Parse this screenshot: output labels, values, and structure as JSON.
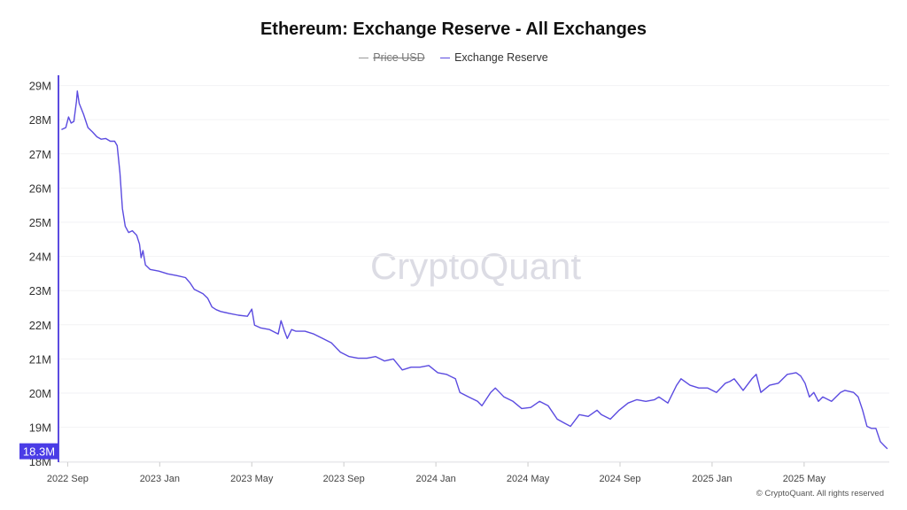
{
  "chart_data": {
    "type": "line",
    "title": "Ethereum: Exchange Reserve - All Exchanges",
    "legend": [
      {
        "name": "Price USD",
        "color": "#999999",
        "hidden": true
      },
      {
        "name": "Exchange Reserve",
        "color": "#5b4be0",
        "hidden": false
      }
    ],
    "legend_placement": "top-center",
    "x_unit": "months since 2022-09-01",
    "x_ticks": [
      {
        "label": "2022 Sep",
        "x": 0
      },
      {
        "label": "2023 Jan",
        "x": 4
      },
      {
        "label": "2023 May",
        "x": 8
      },
      {
        "label": "2023 Sep",
        "x": 12
      },
      {
        "label": "2024 Jan",
        "x": 16
      },
      {
        "label": "2024 May",
        "x": 20
      },
      {
        "label": "2024 Sep",
        "x": 24
      },
      {
        "label": "2025 Jan",
        "x": 28
      },
      {
        "label": "2025 May",
        "x": 32
      }
    ],
    "xlim": [
      -0.4,
      35.7
    ],
    "y_ticks": [
      {
        "label": "18M",
        "y": 18
      },
      {
        "label": "19M",
        "y": 19
      },
      {
        "label": "20M",
        "y": 20
      },
      {
        "label": "21M",
        "y": 21
      },
      {
        "label": "22M",
        "y": 22
      },
      {
        "label": "23M",
        "y": 23
      },
      {
        "label": "24M",
        "y": 24
      },
      {
        "label": "25M",
        "y": 25
      },
      {
        "label": "26M",
        "y": 26
      },
      {
        "label": "27M",
        "y": 27
      },
      {
        "label": "28M",
        "y": 28
      },
      {
        "label": "29M",
        "y": 29
      }
    ],
    "ylim": [
      17.98,
      29.3
    ],
    "ylabel_unit": "ETH (millions)",
    "grid": true,
    "current_value_label": "18.3M",
    "current_value": 18.3,
    "series": [
      {
        "name": "Exchange Reserve",
        "points": [
          [
            -0.27,
            27.71
          ],
          [
            -0.08,
            27.77
          ],
          [
            0.04,
            28.08
          ],
          [
            0.15,
            27.9
          ],
          [
            0.27,
            27.95
          ],
          [
            0.38,
            28.53
          ],
          [
            0.42,
            28.84
          ],
          [
            0.5,
            28.48
          ],
          [
            0.69,
            28.16
          ],
          [
            0.88,
            27.77
          ],
          [
            1.08,
            27.64
          ],
          [
            1.27,
            27.5
          ],
          [
            1.46,
            27.43
          ],
          [
            1.65,
            27.45
          ],
          [
            1.85,
            27.37
          ],
          [
            2.04,
            27.37
          ],
          [
            2.15,
            27.24
          ],
          [
            2.27,
            26.45
          ],
          [
            2.38,
            25.4
          ],
          [
            2.5,
            24.88
          ],
          [
            2.65,
            24.7
          ],
          [
            2.81,
            24.75
          ],
          [
            3.0,
            24.62
          ],
          [
            3.12,
            24.36
          ],
          [
            3.19,
            23.96
          ],
          [
            3.27,
            24.17
          ],
          [
            3.38,
            23.75
          ],
          [
            3.58,
            23.62
          ],
          [
            3.96,
            23.57
          ],
          [
            4.35,
            23.49
          ],
          [
            4.73,
            23.44
          ],
          [
            5.12,
            23.38
          ],
          [
            5.31,
            23.23
          ],
          [
            5.5,
            23.04
          ],
          [
            5.88,
            22.91
          ],
          [
            6.08,
            22.78
          ],
          [
            6.27,
            22.52
          ],
          [
            6.46,
            22.44
          ],
          [
            6.65,
            22.39
          ],
          [
            7.04,
            22.33
          ],
          [
            7.42,
            22.28
          ],
          [
            7.81,
            22.25
          ],
          [
            8.0,
            22.46
          ],
          [
            8.12,
            21.99
          ],
          [
            8.38,
            21.91
          ],
          [
            8.77,
            21.86
          ],
          [
            9.15,
            21.73
          ],
          [
            9.27,
            22.12
          ],
          [
            9.42,
            21.81
          ],
          [
            9.54,
            21.6
          ],
          [
            9.73,
            21.86
          ],
          [
            9.92,
            21.81
          ],
          [
            10.31,
            21.81
          ],
          [
            10.69,
            21.73
          ],
          [
            11.08,
            21.6
          ],
          [
            11.46,
            21.47
          ],
          [
            11.85,
            21.2
          ],
          [
            12.23,
            21.07
          ],
          [
            12.62,
            21.02
          ],
          [
            13.0,
            21.02
          ],
          [
            13.38,
            21.07
          ],
          [
            13.77,
            20.94
          ],
          [
            14.15,
            21.0
          ],
          [
            14.54,
            20.68
          ],
          [
            14.92,
            20.76
          ],
          [
            15.31,
            20.76
          ],
          [
            15.69,
            20.81
          ],
          [
            16.08,
            20.6
          ],
          [
            16.46,
            20.55
          ],
          [
            16.85,
            20.42
          ],
          [
            17.04,
            20.02
          ],
          [
            17.42,
            19.89
          ],
          [
            17.81,
            19.76
          ],
          [
            18.0,
            19.63
          ],
          [
            18.38,
            20.02
          ],
          [
            18.58,
            20.15
          ],
          [
            18.96,
            19.89
          ],
          [
            19.35,
            19.76
          ],
          [
            19.73,
            19.55
          ],
          [
            20.12,
            19.58
          ],
          [
            20.5,
            19.76
          ],
          [
            20.88,
            19.63
          ],
          [
            21.27,
            19.24
          ],
          [
            21.65,
            19.1
          ],
          [
            21.85,
            19.03
          ],
          [
            22.23,
            19.37
          ],
          [
            22.62,
            19.32
          ],
          [
            23.0,
            19.5
          ],
          [
            23.19,
            19.37
          ],
          [
            23.58,
            19.24
          ],
          [
            23.96,
            19.5
          ],
          [
            24.35,
            19.71
          ],
          [
            24.73,
            19.81
          ],
          [
            25.12,
            19.76
          ],
          [
            25.5,
            19.81
          ],
          [
            25.69,
            19.89
          ],
          [
            26.08,
            19.71
          ],
          [
            26.46,
            20.23
          ],
          [
            26.65,
            20.42
          ],
          [
            27.04,
            20.23
          ],
          [
            27.42,
            20.15
          ],
          [
            27.81,
            20.15
          ],
          [
            28.19,
            20.02
          ],
          [
            28.58,
            20.29
          ],
          [
            28.77,
            20.34
          ],
          [
            28.96,
            20.42
          ],
          [
            29.35,
            20.08
          ],
          [
            29.73,
            20.42
          ],
          [
            29.92,
            20.55
          ],
          [
            30.12,
            20.02
          ],
          [
            30.5,
            20.23
          ],
          [
            30.88,
            20.29
          ],
          [
            31.27,
            20.55
          ],
          [
            31.65,
            20.6
          ],
          [
            31.85,
            20.5
          ],
          [
            32.04,
            20.29
          ],
          [
            32.23,
            19.89
          ],
          [
            32.42,
            20.02
          ],
          [
            32.62,
            19.76
          ],
          [
            32.81,
            19.89
          ],
          [
            33.19,
            19.76
          ],
          [
            33.58,
            20.02
          ],
          [
            33.77,
            20.08
          ],
          [
            34.15,
            20.02
          ],
          [
            34.35,
            19.89
          ],
          [
            34.54,
            19.5
          ],
          [
            34.73,
            19.03
          ],
          [
            34.92,
            18.97
          ],
          [
            35.12,
            18.97
          ],
          [
            35.31,
            18.58
          ],
          [
            35.5,
            18.45
          ],
          [
            35.62,
            18.37
          ]
        ]
      }
    ],
    "watermark": "CryptoQuant"
  },
  "footer": "© CryptoQuant. All rights reserved"
}
